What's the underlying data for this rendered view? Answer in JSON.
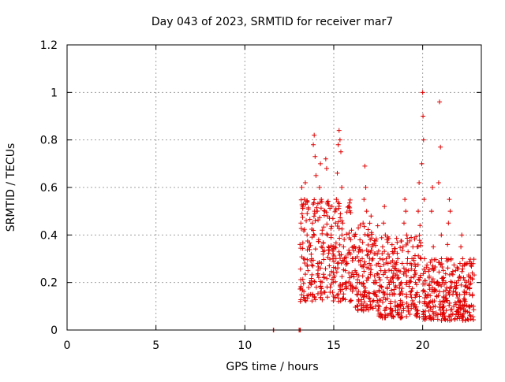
{
  "chart_data": {
    "type": "scatter",
    "title": "Day 043 of 2023, SRMTID for receiver mar7",
    "xlabel": "GPS time / hours",
    "ylabel": "SRMTID / TECUs",
    "xlim": [
      0,
      23.3
    ],
    "ylim": [
      0,
      1.2
    ],
    "xticks": [
      0,
      5,
      10,
      15,
      20
    ],
    "xtick_labels": [
      "0",
      "5",
      "10",
      "15",
      "20"
    ],
    "yticks": [
      0,
      0.2,
      0.4,
      0.6,
      0.8,
      1.0,
      1.2
    ],
    "ytick_labels": [
      "0",
      "0.2",
      "0.4",
      "0.6",
      "0.8",
      "1",
      "1.2"
    ],
    "grid": true,
    "marker": "+",
    "color": "#e00000",
    "series": [
      {
        "name": "SRMTID",
        "points": [
          [
            11.6,
            0.0
          ],
          [
            11.62,
            0.0
          ],
          [
            13.05,
            0.0
          ],
          [
            13.1,
            0.0
          ],
          [
            13.12,
            0.0
          ],
          [
            13.1,
            0.36
          ],
          [
            13.15,
            0.45
          ],
          [
            13.2,
            0.6
          ],
          [
            13.25,
            0.52
          ],
          [
            13.3,
            0.3
          ],
          [
            13.35,
            0.55
          ],
          [
            13.4,
            0.62
          ],
          [
            13.45,
            0.46
          ],
          [
            13.5,
            0.4
          ],
          [
            13.55,
            0.25
          ],
          [
            13.6,
            0.35
          ],
          [
            13.65,
            0.2
          ],
          [
            13.7,
            0.15
          ],
          [
            13.75,
            0.3
          ],
          [
            13.8,
            0.45
          ],
          [
            13.85,
            0.78
          ],
          [
            13.9,
            0.82
          ],
          [
            13.95,
            0.73
          ],
          [
            14.0,
            0.65
          ],
          [
            14.05,
            0.5
          ],
          [
            14.1,
            0.28
          ],
          [
            14.15,
            0.38
          ],
          [
            14.2,
            0.6
          ],
          [
            14.25,
            0.7
          ],
          [
            14.3,
            0.55
          ],
          [
            14.35,
            0.42
          ],
          [
            14.4,
            0.32
          ],
          [
            14.45,
            0.22
          ],
          [
            14.5,
            0.5
          ],
          [
            14.55,
            0.72
          ],
          [
            14.6,
            0.68
          ],
          [
            14.65,
            0.48
          ],
          [
            14.7,
            0.35
          ],
          [
            14.75,
            0.27
          ],
          [
            14.8,
            0.18
          ],
          [
            14.85,
            0.4
          ],
          [
            14.9,
            0.52
          ],
          [
            14.95,
            0.3
          ],
          [
            15.0,
            0.22
          ],
          [
            15.05,
            0.35
          ],
          [
            15.1,
            0.45
          ],
          [
            15.15,
            0.55
          ],
          [
            15.2,
            0.66
          ],
          [
            15.25,
            0.78
          ],
          [
            15.3,
            0.84
          ],
          [
            15.35,
            0.8
          ],
          [
            15.4,
            0.75
          ],
          [
            15.45,
            0.6
          ],
          [
            15.5,
            0.45
          ],
          [
            15.55,
            0.35
          ],
          [
            15.6,
            0.3
          ],
          [
            15.65,
            0.25
          ],
          [
            15.7,
            0.2
          ],
          [
            15.75,
            0.28
          ],
          [
            15.8,
            0.32
          ],
          [
            15.85,
            0.24
          ],
          [
            15.9,
            0.22
          ],
          [
            15.95,
            0.38
          ],
          [
            16.0,
            0.42
          ],
          [
            16.05,
            0.3
          ],
          [
            16.1,
            0.35
          ],
          [
            16.15,
            0.4
          ],
          [
            16.2,
            0.25
          ],
          [
            16.25,
            0.18
          ],
          [
            16.3,
            0.15
          ],
          [
            16.35,
            0.1
          ],
          [
            16.4,
            0.12
          ],
          [
            16.45,
            0.2
          ],
          [
            16.5,
            0.15
          ],
          [
            16.55,
            0.11
          ],
          [
            16.6,
            0.3
          ],
          [
            16.65,
            0.45
          ],
          [
            16.7,
            0.55
          ],
          [
            16.75,
            0.69
          ],
          [
            16.8,
            0.6
          ],
          [
            16.85,
            0.5
          ],
          [
            16.9,
            0.4
          ],
          [
            16.95,
            0.33
          ],
          [
            17.0,
            0.28
          ],
          [
            17.05,
            0.38
          ],
          [
            17.1,
            0.48
          ],
          [
            17.15,
            0.35
          ],
          [
            17.2,
            0.3
          ],
          [
            17.25,
            0.2
          ],
          [
            17.3,
            0.15
          ],
          [
            17.35,
            0.1
          ],
          [
            17.4,
            0.2
          ],
          [
            17.45,
            0.32
          ],
          [
            17.5,
            0.28
          ],
          [
            17.55,
            0.22
          ],
          [
            17.6,
            0.3
          ],
          [
            17.65,
            0.25
          ],
          [
            17.7,
            0.18
          ],
          [
            17.75,
            0.35
          ],
          [
            17.8,
            0.45
          ],
          [
            17.85,
            0.52
          ],
          [
            17.9,
            0.4
          ],
          [
            17.95,
            0.3
          ],
          [
            18.0,
            0.22
          ],
          [
            18.05,
            0.28
          ],
          [
            18.1,
            0.2
          ],
          [
            18.15,
            0.15
          ],
          [
            18.2,
            0.12
          ],
          [
            18.25,
            0.25
          ],
          [
            18.3,
            0.33
          ],
          [
            18.35,
            0.2
          ],
          [
            18.4,
            0.15
          ],
          [
            18.45,
            0.1
          ],
          [
            18.5,
            0.18
          ],
          [
            18.55,
            0.25
          ],
          [
            18.6,
            0.3
          ],
          [
            18.65,
            0.22
          ],
          [
            18.7,
            0.15
          ],
          [
            18.75,
            0.1
          ],
          [
            18.8,
            0.2
          ],
          [
            18.85,
            0.28
          ],
          [
            18.9,
            0.35
          ],
          [
            18.95,
            0.45
          ],
          [
            19.0,
            0.55
          ],
          [
            19.05,
            0.5
          ],
          [
            19.1,
            0.4
          ],
          [
            19.15,
            0.3
          ],
          [
            19.2,
            0.25
          ],
          [
            19.25,
            0.2
          ],
          [
            19.3,
            0.28
          ],
          [
            19.35,
            0.22
          ],
          [
            19.4,
            0.3
          ],
          [
            19.45,
            0.35
          ],
          [
            19.5,
            0.3
          ],
          [
            19.55,
            0.25
          ],
          [
            19.6,
            0.2
          ],
          [
            19.65,
            0.15
          ],
          [
            19.7,
            0.35
          ],
          [
            19.75,
            0.5
          ],
          [
            19.8,
            0.62
          ],
          [
            19.85,
            0.44
          ],
          [
            19.9,
            0.3
          ],
          [
            19.95,
            0.7
          ],
          [
            20.0,
            1.0
          ],
          [
            20.02,
            0.9
          ],
          [
            20.05,
            0.8
          ],
          [
            20.08,
            0.55
          ],
          [
            20.1,
            0.3
          ],
          [
            20.12,
            0.12
          ],
          [
            20.15,
            0.08
          ],
          [
            20.2,
            0.05
          ],
          [
            20.25,
            0.1
          ],
          [
            20.3,
            0.15
          ],
          [
            20.35,
            0.08
          ],
          [
            20.4,
            0.06
          ],
          [
            20.45,
            0.12
          ],
          [
            20.5,
            0.5
          ],
          [
            20.55,
            0.6
          ],
          [
            20.6,
            0.35
          ],
          [
            20.65,
            0.2
          ],
          [
            20.7,
            0.1
          ],
          [
            20.75,
            0.06
          ],
          [
            20.8,
            0.14
          ],
          [
            20.85,
            0.2
          ],
          [
            20.9,
            0.62
          ],
          [
            20.95,
            0.96
          ],
          [
            21.0,
            0.77
          ],
          [
            21.05,
            0.4
          ],
          [
            21.1,
            0.2
          ],
          [
            21.15,
            0.1
          ],
          [
            21.2,
            0.05
          ],
          [
            21.25,
            0.12
          ],
          [
            21.3,
            0.2
          ],
          [
            21.35,
            0.3
          ],
          [
            21.4,
            0.36
          ],
          [
            21.45,
            0.45
          ],
          [
            21.5,
            0.55
          ],
          [
            21.55,
            0.5
          ],
          [
            21.6,
            0.3
          ],
          [
            21.65,
            0.2
          ],
          [
            21.7,
            0.15
          ],
          [
            21.75,
            0.1
          ],
          [
            21.8,
            0.2
          ],
          [
            21.85,
            0.25
          ],
          [
            21.9,
            0.15
          ],
          [
            21.95,
            0.08
          ],
          [
            22.0,
            0.12
          ],
          [
            22.05,
            0.22
          ],
          [
            22.1,
            0.28
          ],
          [
            22.15,
            0.35
          ],
          [
            22.2,
            0.4
          ],
          [
            22.25,
            0.3
          ],
          [
            22.3,
            0.22
          ],
          [
            22.35,
            0.15
          ],
          [
            22.4,
            0.12
          ],
          [
            22.45,
            0.2
          ],
          [
            22.5,
            0.28
          ],
          [
            22.55,
            0.18
          ],
          [
            22.6,
            0.1
          ],
          [
            22.65,
            0.15
          ],
          [
            22.7,
            0.22
          ],
          [
            22.75,
            0.28
          ],
          [
            22.8,
            0.15
          ],
          [
            22.85,
            0.1
          ]
        ],
        "dense_ranges": [
          [
            13.1,
            16.0,
            0.12,
            0.55
          ],
          [
            16.0,
            17.5,
            0.08,
            0.45
          ],
          [
            17.5,
            19.9,
            0.05,
            0.4
          ],
          [
            20.0,
            22.9,
            0.04,
            0.3
          ]
        ]
      }
    ]
  }
}
